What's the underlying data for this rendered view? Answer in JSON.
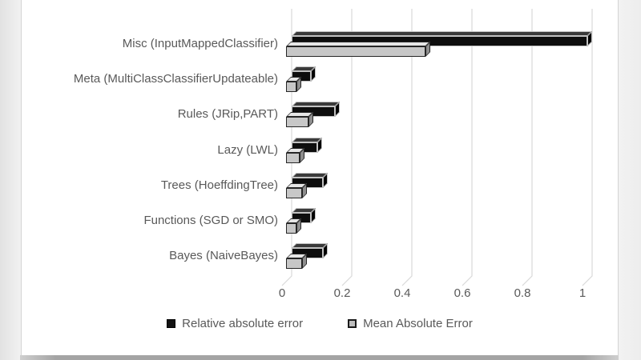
{
  "chart_data": {
    "type": "bar",
    "orientation": "horizontal",
    "style": "3d",
    "title": "",
    "xlabel": "",
    "ylabel": "",
    "categories": [
      "Misc (InputMappedClassifier)",
      "Meta (MultiClassClassifierUpdateable)",
      "Rules (JRip,PART)",
      "Lazy (LWL)",
      "Trees (HoeffdingTree)",
      "Functions (SGD or SMO)",
      "Bayes (NaiveBayes)"
    ],
    "series": [
      {
        "name": "Relative absolute error",
        "color": "#111111",
        "values": [
          1.0,
          0.08,
          0.16,
          0.1,
          0.12,
          0.08,
          0.12
        ]
      },
      {
        "name": "Mean Absolute Error",
        "color": "#c7c7c7",
        "values": [
          0.48,
          0.05,
          0.09,
          0.06,
          0.07,
          0.05,
          0.07
        ]
      }
    ],
    "x_ticks": [
      "0",
      "0.2",
      "0.4",
      "0.6",
      "0.8",
      "1"
    ],
    "xlim": [
      0,
      1
    ],
    "grid": true,
    "legend_position": "bottom",
    "text_color": "#595959",
    "gridline_color": "#d9d9d9"
  }
}
